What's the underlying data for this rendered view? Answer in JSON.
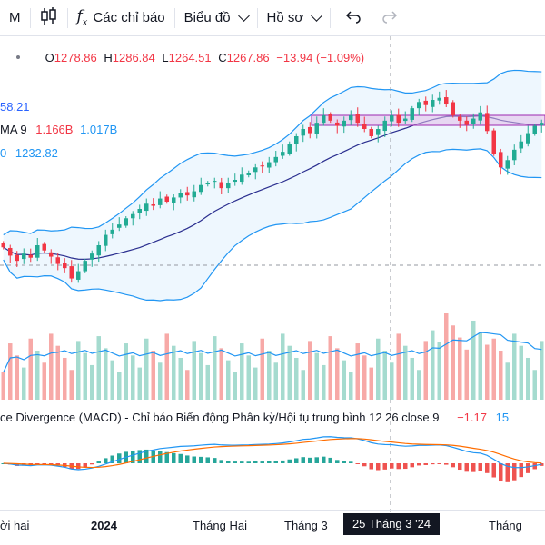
{
  "toolbar": {
    "interval": "M",
    "indicators_label": "Các chỉ báo",
    "chart_label": "Biểu đồ",
    "profile_label": "Hồ sơ"
  },
  "legend": {
    "open_label": "O",
    "open": "1278.86",
    "high_label": "H",
    "high": "1286.84",
    "low_label": "L",
    "low": "1264.51",
    "close_label": "C",
    "close": "1267.86",
    "change": "−13.94 (−1.09%)",
    "bb_value": "58.21",
    "vol_label": "MA 9",
    "vol_value": "1.166B",
    "vol_ma": "1.017B",
    "bb_prefix": "0",
    "bb_lower": "1232.82"
  },
  "macd": {
    "title": "ce Divergence (MACD) - Chỉ báo Biến động Phân kỳ/Hội tụ trung bình 12 26 close 9",
    "value1": "−1.17",
    "value2": "15"
  },
  "time_axis": {
    "labels": [
      "ời hai",
      "2024",
      "Tháng Hai",
      "Tháng 3",
      "Tháng"
    ],
    "crosshair_label": "25 Tháng 3 '24"
  },
  "colors": {
    "up": "#22ab94",
    "down": "#f23645",
    "bb": "#2196f3",
    "ma": "#2a2e8f",
    "macd_line": "#2196f3",
    "signal_line": "#ff6d00"
  },
  "chart_data": {
    "type": "candlestick",
    "closes": [
      1148,
      1140,
      1135,
      1142,
      1138,
      1150,
      1145,
      1139,
      1132,
      1128,
      1118,
      1125,
      1135,
      1142,
      1150,
      1160,
      1165,
      1170,
      1176,
      1180,
      1185,
      1190,
      1188,
      1195,
      1192,
      1196,
      1200,
      1198,
      1202,
      1208,
      1210,
      1212,
      1205,
      1210,
      1213,
      1218,
      1220,
      1225,
      1226,
      1230,
      1235,
      1240,
      1248,
      1255,
      1262,
      1258,
      1268,
      1275,
      1270,
      1265,
      1270,
      1275,
      1268,
      1262,
      1255,
      1262,
      1270,
      1275,
      1268,
      1272,
      1282,
      1288,
      1285,
      1290,
      1292,
      1286,
      1275,
      1270,
      1266,
      1272,
      1278,
      1260,
      1238,
      1225,
      1232,
      1242,
      1250,
      1258,
      1265,
      1268
    ],
    "volume_ma_period": 9,
    "macd_params": [
      12,
      26,
      9
    ]
  }
}
